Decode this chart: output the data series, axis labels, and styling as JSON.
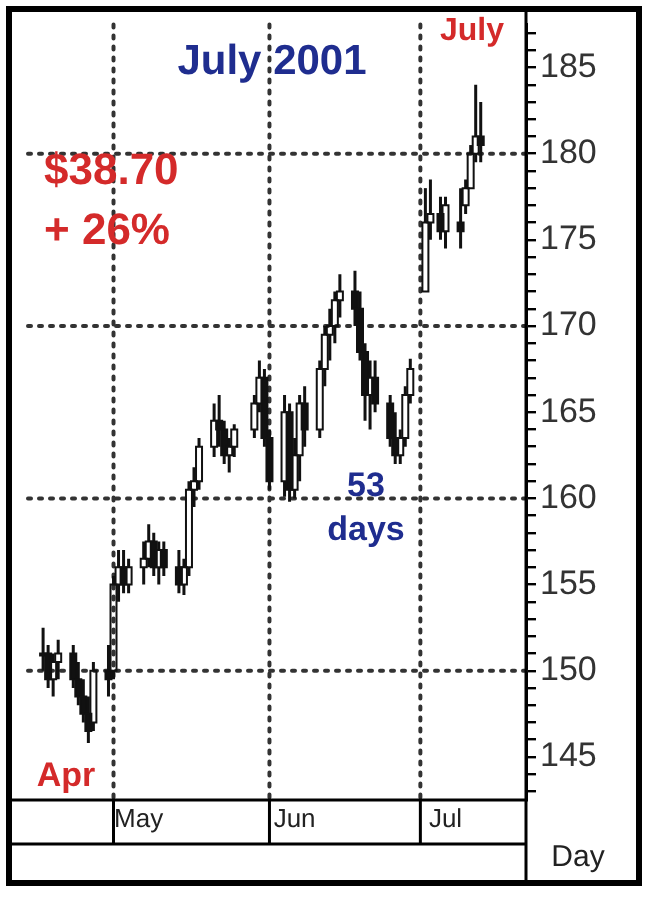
{
  "chart_data": {
    "type": "candlestick",
    "title": "July 2001",
    "xlabel": "Day",
    "annotations": [
      "$38.70",
      "+ 26%",
      "53 days",
      "Apr",
      "July"
    ],
    "x": [
      "2001-04-17",
      "2001-04-18",
      "2001-04-19",
      "2001-04-20",
      "2001-04-23",
      "2001-04-24",
      "2001-04-25",
      "2001-04-26",
      "2001-04-27",
      "2001-04-30",
      "2001-05-01",
      "2001-05-02",
      "2001-05-03",
      "2001-05-04",
      "2001-05-07",
      "2001-05-08",
      "2001-05-09",
      "2001-05-10",
      "2001-05-11",
      "2001-05-14",
      "2001-05-15",
      "2001-05-16",
      "2001-05-17",
      "2001-05-18",
      "2001-05-21",
      "2001-05-22",
      "2001-05-23",
      "2001-05-24",
      "2001-05-25",
      "2001-05-29",
      "2001-05-30",
      "2001-05-31",
      "2001-06-01",
      "2001-06-04",
      "2001-06-05",
      "2001-06-06",
      "2001-06-07",
      "2001-06-08",
      "2001-06-11",
      "2001-06-12",
      "2001-06-13",
      "2001-06-14",
      "2001-06-15",
      "2001-06-18",
      "2001-06-19",
      "2001-06-20",
      "2001-06-21",
      "2001-06-22",
      "2001-06-25",
      "2001-06-26",
      "2001-06-27",
      "2001-06-28",
      "2001-06-29",
      "2001-07-02",
      "2001-07-03",
      "2001-07-05",
      "2001-07-06",
      "2001-07-09",
      "2001-07-10",
      "2001-07-11",
      "2001-07-12",
      "2001-07-13"
    ],
    "ohlc": [
      [
        151,
        152.5,
        150,
        151
      ],
      [
        151,
        151.5,
        149,
        149.5
      ],
      [
        149.5,
        151,
        148.5,
        150.5
      ],
      [
        150.5,
        151.8,
        149.5,
        151
      ],
      [
        151,
        151.5,
        149,
        149.5
      ],
      [
        149.5,
        150.5,
        148,
        148.5
      ],
      [
        148.5,
        149.5,
        147,
        147.5
      ],
      [
        147.5,
        148.5,
        145.8,
        146.5
      ],
      [
        147,
        150.5,
        146.5,
        150
      ],
      [
        150,
        151.5,
        148.5,
        149.5
      ],
      [
        150,
        155.5,
        149.5,
        155
      ],
      [
        155,
        157,
        154,
        156
      ],
      [
        156,
        157,
        154.5,
        155
      ],
      [
        155,
        156.5,
        154.5,
        156
      ],
      [
        156,
        157.5,
        155,
        156.5
      ],
      [
        156.5,
        158.5,
        156,
        157.5
      ],
      [
        157.5,
        158,
        155.5,
        156
      ],
      [
        156,
        157.5,
        155,
        157
      ],
      [
        157,
        157.5,
        155.5,
        156
      ],
      [
        156,
        157,
        154.5,
        155
      ],
      [
        155,
        156.5,
        154.4,
        156
      ],
      [
        156,
        161,
        155.5,
        160.5
      ],
      [
        160.5,
        161.8,
        159.5,
        161
      ],
      [
        161,
        163.5,
        160.5,
        163
      ],
      [
        163,
        165.5,
        162.4,
        164.5
      ],
      [
        164.5,
        166,
        163,
        164
      ],
      [
        164,
        164.5,
        162,
        162.5
      ],
      [
        162.5,
        163.5,
        161.5,
        163
      ],
      [
        163,
        164.3,
        162.4,
        164
      ],
      [
        164,
        166,
        163.5,
        165.5
      ],
      [
        165.5,
        168,
        165,
        167
      ],
      [
        167,
        167.5,
        163,
        163.5
      ],
      [
        163.5,
        164,
        160.5,
        161
      ],
      [
        161,
        166,
        160.1,
        165
      ],
      [
        165,
        165.5,
        159.8,
        160.5
      ],
      [
        160.5,
        163.5,
        160,
        162.5
      ],
      [
        162.5,
        166,
        161,
        165.5
      ],
      [
        165.5,
        166.5,
        163,
        164
      ],
      [
        164,
        168,
        163.5,
        167.5
      ],
      [
        167.5,
        170,
        166.5,
        169.5
      ],
      [
        169.5,
        171,
        168,
        170
      ],
      [
        170,
        172,
        169,
        171.5
      ],
      [
        171.5,
        173,
        170.5,
        172
      ],
      [
        172,
        173.2,
        170,
        171
      ],
      [
        171,
        172,
        168,
        168.5
      ],
      [
        168.5,
        169,
        164.5,
        166
      ],
      [
        166,
        168,
        164,
        167
      ],
      [
        167,
        168,
        165,
        165.5
      ],
      [
        165.5,
        166,
        163,
        163.5
      ],
      [
        163.5,
        165,
        162,
        162.5
      ],
      [
        162.5,
        164,
        162,
        163.5
      ],
      [
        163.5,
        166.5,
        163,
        166
      ],
      [
        166,
        168.1,
        165.5,
        167.5
      ],
      [
        172,
        178,
        172,
        176
      ],
      [
        176,
        178.5,
        175,
        176.5
      ],
      [
        176.5,
        177.5,
        175,
        175.5
      ],
      [
        175.5,
        177.5,
        174.5,
        177
      ],
      [
        176,
        178,
        174.5,
        175.5
      ],
      [
        177,
        178.5,
        176.5,
        178
      ],
      [
        178,
        180.5,
        178,
        180
      ],
      [
        180,
        184,
        179.5,
        181
      ],
      [
        181,
        183,
        179.5,
        180.5
      ]
    ],
    "xlim": [
      "2001-04-14",
      "2001-07-22"
    ],
    "xticks": [
      {
        "value": "2001-05-06",
        "label": "May"
      },
      {
        "value": "2001-06-06",
        "label": "Jun"
      },
      {
        "value": "2001-07-06",
        "label": "Jul"
      }
    ],
    "ylim": [
      142.5,
      187.5
    ],
    "yticks": [
      {
        "value": 143,
        "label": null
      },
      {
        "value": 144,
        "label": null
      },
      145,
      {
        "value": 146,
        "label": null
      },
      {
        "value": 147,
        "label": null
      },
      {
        "value": 148,
        "label": null
      },
      {
        "value": 149,
        "label": null
      },
      150,
      {
        "value": 151,
        "label": null
      },
      {
        "value": 152,
        "label": null
      },
      {
        "value": 153,
        "label": null
      },
      {
        "value": 154,
        "label": null
      },
      155,
      {
        "value": 156,
        "label": null
      },
      {
        "value": 157,
        "label": null
      },
      {
        "value": 158,
        "label": null
      },
      {
        "value": 159,
        "label": null
      },
      160,
      {
        "value": 161,
        "label": null
      },
      {
        "value": 162,
        "label": null
      },
      {
        "value": 163,
        "label": null
      },
      {
        "value": 164,
        "label": null
      },
      165,
      {
        "value": 166,
        "label": null
      },
      {
        "value": 167,
        "label": null
      },
      {
        "value": 168,
        "label": null
      },
      {
        "value": 169,
        "label": null
      },
      170,
      {
        "value": 171,
        "label": null
      },
      {
        "value": 172,
        "label": null
      },
      {
        "value": 173,
        "label": null
      },
      {
        "value": 174,
        "label": null
      },
      175,
      {
        "value": 176,
        "label": null
      },
      {
        "value": 177,
        "label": null
      },
      {
        "value": 178,
        "label": null
      },
      {
        "value": 179,
        "label": null
      },
      180,
      {
        "value": 181,
        "label": null
      },
      {
        "value": 182,
        "label": null
      },
      {
        "value": 183,
        "label": null
      },
      {
        "value": 184,
        "label": null
      },
      185,
      {
        "value": 186,
        "label": null
      },
      {
        "value": 187,
        "label": null
      }
    ],
    "ref_lines": [
      {
        "axis": "y",
        "value": 150,
        "color": "#333333",
        "line_style": "dotted"
      },
      {
        "axis": "y",
        "value": 160,
        "color": "#333333",
        "line_style": "dotted"
      },
      {
        "axis": "y",
        "value": 170,
        "color": "#333333",
        "line_style": "dotted"
      },
      {
        "axis": "y",
        "value": 180,
        "color": "#333333",
        "line_style": "dotted"
      },
      {
        "axis": "x",
        "value": "2001-05-01",
        "color": "#333333",
        "line_style": "dotted"
      },
      {
        "axis": "x",
        "value": "2001-06-01",
        "color": "#333333",
        "line_style": "dotted"
      },
      {
        "axis": "x",
        "value": "2001-07-01",
        "color": "#333333",
        "line_style": "dotted"
      }
    ],
    "color": "#111111"
  }
}
